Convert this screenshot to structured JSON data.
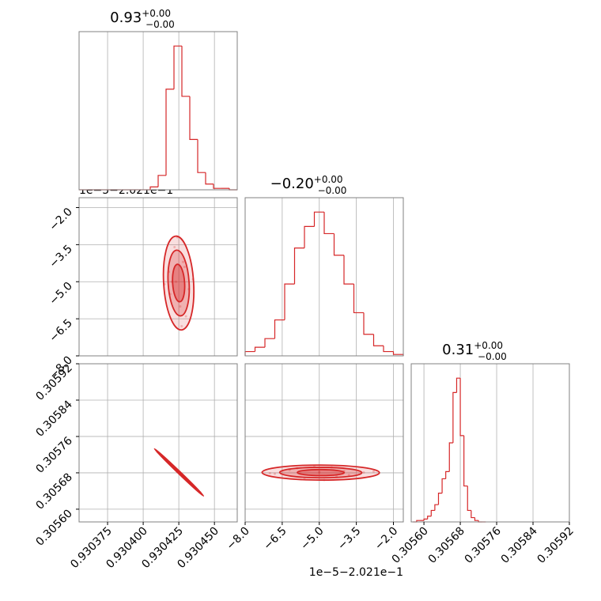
{
  "axes": [
    {
      "lim": [
        0.930355,
        0.930466
      ],
      "ticks": [
        0.930375,
        {
          "value": 0.9304,
          "label": "0.930400"
        },
        0.930425,
        {
          "value": 0.93045,
          "label": "0.930450"
        }
      ],
      "title": {
        "value": "0.93",
        "upper": "+0.00",
        "lower": "−0.00"
      }
    },
    {
      "lim": [
        -8.0,
        -1.6
      ],
      "ticks": [
        {
          "value": -8,
          "label": "−8.0"
        },
        {
          "value": -6.5,
          "label": "−6.5"
        },
        {
          "value": -5,
          "label": "−5.0"
        },
        {
          "value": -3.5,
          "label": "−3.5"
        },
        {
          "value": -2,
          "label": "−2.0"
        }
      ],
      "title": {
        "value": "−0.20",
        "upper": "+0.00",
        "lower": "−0.00"
      }
    },
    {
      "lim": [
        0.305572,
        0.30592
      ],
      "ticks": [
        {
          "value": 0.3056,
          "label": "0.30560"
        },
        0.30568,
        0.30576,
        0.30584,
        0.30592
      ],
      "title": {
        "value": "0.31",
        "upper": "+0.00",
        "lower": "−0.00"
      }
    }
  ],
  "offset_text": "1e−5−2.021e−1",
  "chart_data": [
    {
      "type": "histogram",
      "color": "#d62728",
      "ylim": [
        0,
        110
      ],
      "bins": [
        0.930355,
        0.93036055,
        0.9303661,
        0.93037165,
        0.9303772,
        0.93038275,
        0.9303883,
        0.93039385,
        0.9303994,
        0.93040495,
        0.9304105,
        0.93041605,
        0.9304216,
        0.93042715,
        0.9304327,
        0.93043825,
        0.9304438,
        0.93044935,
        0.9304549,
        0.93046045,
        0.930466
      ],
      "counts": [
        0,
        0,
        0,
        0,
        0,
        0,
        0,
        0,
        0,
        2,
        10,
        70,
        100,
        65,
        35,
        12,
        4,
        1,
        1,
        0
      ]
    },
    {
      "type": "histogram",
      "color": "#d62728",
      "ylim": [
        0,
        110
      ],
      "bins": [
        -8.0,
        -7.6,
        -7.2,
        -6.8,
        -6.4,
        -6.0,
        -5.6,
        -5.2,
        -4.8,
        -4.4,
        -4.0,
        -3.6,
        -3.2,
        -2.8,
        -2.4,
        -2.0,
        -1.6
      ],
      "counts": [
        3,
        6,
        12,
        25,
        50,
        75,
        90,
        100,
        85,
        70,
        50,
        30,
        15,
        7,
        3,
        1
      ]
    },
    {
      "type": "histogram",
      "color": "#d62728",
      "ylim": [
        0,
        110
      ],
      "bins": [
        0.305576,
        0.305584,
        0.305592,
        0.3056,
        0.305608,
        0.305616,
        0.305624,
        0.305632,
        0.30564,
        0.305648,
        0.305656,
        0.305664,
        0.305672,
        0.30568,
        0.305688,
        0.305696,
        0.305704,
        0.305712,
        0.30572,
        0.305728,
        0.305736
      ],
      "counts": [
        0,
        1,
        1,
        2,
        4,
        8,
        12,
        20,
        30,
        35,
        55,
        90,
        100,
        60,
        25,
        8,
        3,
        1,
        0,
        0
      ]
    },
    {
      "type": "scatter",
      "color": "#d62728",
      "x": [
        0.93042,
        0.930428,
        0.930425,
        0.930418,
        0.930432,
        0.930422,
        0.93043,
        0.930415,
        0.930435,
        0.930424,
        0.930427,
        0.930419,
        0.930429,
        0.930423,
        0.930426
      ],
      "y": [
        -5.0,
        -4.2,
        -5.8,
        -4.6,
        -5.3,
        -3.6,
        -6.4,
        -5.1,
        -4.9,
        -3.2,
        -6.8,
        -5.5,
        -4.4,
        -5.0,
        -6.0
      ]
    },
    {
      "type": "scatter",
      "color": "#d62728",
      "x": [
        0.93041,
        0.930415,
        0.93042,
        0.930425,
        0.93043,
        0.930435,
        0.93044,
        0.930418,
        0.930428,
        0.930422,
        0.930432,
        0.930413,
        0.930437,
        0.930425,
        0.930427
      ],
      "y": [
        0.305726,
        0.305712,
        0.305695,
        0.305681,
        0.305666,
        0.30565,
        0.305637,
        0.305703,
        0.305673,
        0.30569,
        0.30566,
        0.305718,
        0.305645,
        0.305684,
        0.305676
      ]
    },
    {
      "type": "scatter",
      "color": "#d62728",
      "x": [
        -5.0,
        -6.2,
        -3.8,
        -4.5,
        -5.6,
        -4.0,
        -6.8,
        -3.2,
        -5.2,
        -4.8,
        -5.9,
        -4.3,
        -2.8,
        -7.0,
        -5.0
      ],
      "y": [
        0.30568,
        0.305686,
        0.305675,
        0.305692,
        0.305668,
        0.305684,
        0.305678,
        0.305681,
        0.305695,
        0.305664,
        0.30569,
        0.305672,
        0.305683,
        0.305679,
        0.305682
      ]
    }
  ]
}
